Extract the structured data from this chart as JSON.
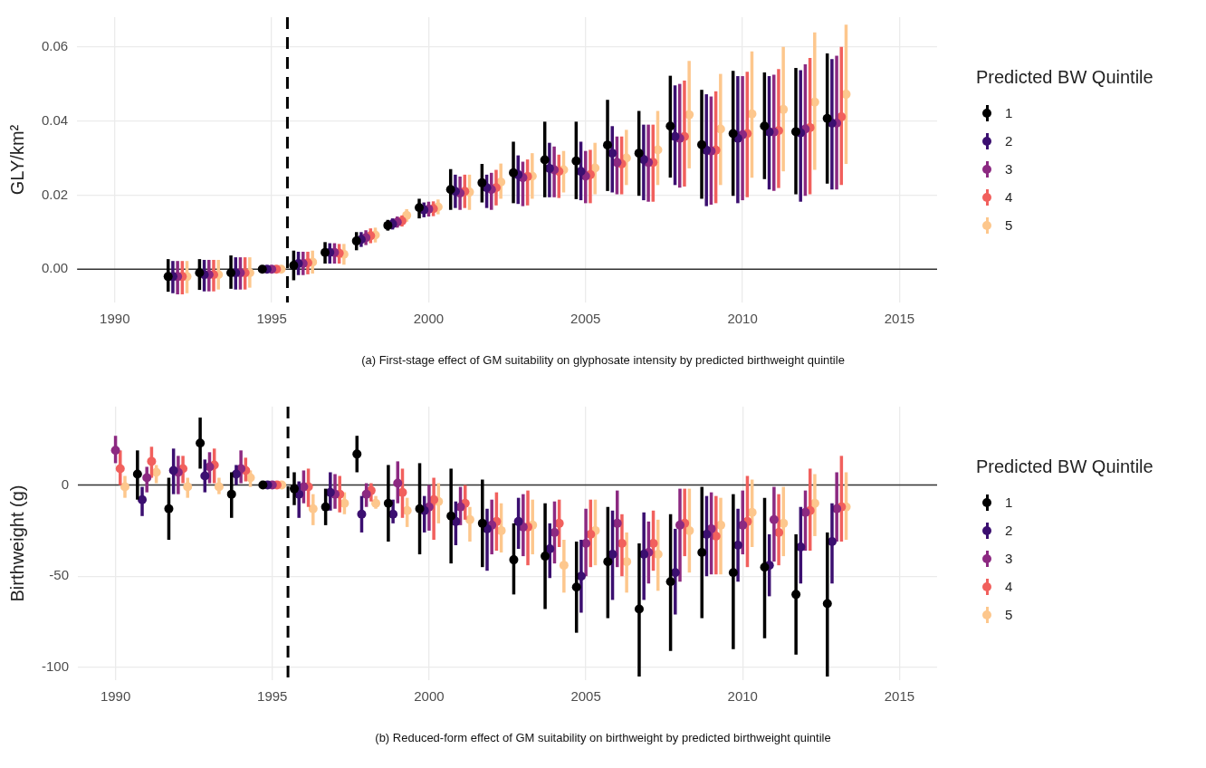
{
  "chart_data": [
    {
      "type": "scatter",
      "title": "(a) First-stage effect of GM suitability on glyphosate intensity by predicted birthweight quintile",
      "ylabel": "GLY/km²",
      "legend_title": "Predicted BW Quintile",
      "legend": "right",
      "grid": true,
      "marker": "circle",
      "xlim": [
        1988.8,
        2016.2
      ],
      "xticks": [
        1990,
        1995,
        2000,
        2005,
        2010,
        2015
      ],
      "ylim": [
        -0.009,
        0.068
      ],
      "yticks": [
        {
          "value": 0,
          "label": "0.00"
        },
        {
          "value": 0.02,
          "label": "0.02"
        },
        {
          "value": 0.04,
          "label": "0.04"
        },
        {
          "value": 0.06,
          "label": "0.06"
        }
      ],
      "ref_lines": [
        {
          "axis": "y",
          "value": 0,
          "color": "#333333",
          "line_style": "solid"
        },
        {
          "axis": "x",
          "value": 1995.5,
          "color": "#000000",
          "line_style": "dashed"
        }
      ],
      "series": [
        {
          "name": "1",
          "color": "#000000",
          "x": [
            1991.7,
            1992.7,
            1993.7,
            1994.7,
            1995.7,
            1996.7,
            1997.7,
            1998.7,
            1999.7,
            2000.7,
            2001.7,
            2002.7,
            2003.7,
            2004.7,
            2005.7,
            2006.7,
            2007.7,
            2008.7,
            2009.7,
            2010.7,
            2011.7,
            2012.7
          ],
          "values": [
            -0.002,
            -0.001,
            -0.001,
            0,
            0.001,
            0.0045,
            0.0076,
            0.0118,
            0.0166,
            0.0215,
            0.0233,
            0.026,
            0.0295,
            0.0292,
            0.0335,
            0.0313,
            0.0386,
            0.0336,
            0.0366,
            0.0386,
            0.0371,
            0.0407
          ],
          "errors": [
            [
              -0.0061,
              0.0027
            ],
            [
              -0.0056,
              0.0027
            ],
            [
              -0.0053,
              0.0037
            ],
            null,
            [
              -0.003,
              0.005
            ],
            [
              0.0015,
              0.0073
            ],
            [
              0.0051,
              0.01
            ],
            [
              0.0104,
              0.0133
            ],
            [
              0.0137,
              0.019
            ],
            [
              0.016,
              0.027
            ],
            [
              0.018,
              0.0284
            ],
            [
              0.0178,
              0.0344
            ],
            [
              0.0194,
              0.0398
            ],
            [
              0.0189,
              0.0398
            ],
            [
              0.0211,
              0.0457
            ],
            [
              0.0198,
              0.0427
            ],
            [
              0.0247,
              0.0522
            ],
            [
              0.019,
              0.0484
            ],
            [
              0.0198,
              0.0535
            ],
            [
              0.0243,
              0.0531
            ],
            [
              0.0202,
              0.0543
            ],
            [
              0.0231,
              0.0582
            ]
          ]
        },
        {
          "name": "2",
          "color": "#3b0f70",
          "x": [
            1991.85,
            1992.85,
            1993.85,
            1994.85,
            1995.85,
            1996.85,
            1997.85,
            1998.85,
            1999.85,
            2000.85,
            2001.85,
            2002.85,
            2003.85,
            2004.85,
            2005.85,
            2006.85,
            2007.85,
            2008.85,
            2009.85,
            2010.85,
            2011.85,
            2012.85
          ],
          "values": [
            -0.002,
            -0.0015,
            -0.001,
            0,
            0.0015,
            0.0045,
            0.008,
            0.0122,
            0.016,
            0.021,
            0.022,
            0.0255,
            0.0272,
            0.0264,
            0.0313,
            0.0296,
            0.0358,
            0.0321,
            0.0353,
            0.037,
            0.0368,
            0.0394
          ],
          "errors": [
            [
              -0.0065,
              0.0022
            ],
            [
              -0.006,
              0.0025
            ],
            [
              -0.0055,
              0.0032
            ],
            null,
            [
              -0.0016,
              0.0047
            ],
            [
              0.0015,
              0.007
            ],
            [
              0.006,
              0.01
            ],
            [
              0.0107,
              0.0137
            ],
            [
              0.014,
              0.018
            ],
            [
              0.0165,
              0.0255
            ],
            [
              0.0165,
              0.0255
            ],
            [
              0.0176,
              0.0307
            ],
            [
              0.0194,
              0.0341
            ],
            [
              0.0186,
              0.0344
            ],
            [
              0.0207,
              0.0386
            ],
            [
              0.0186,
              0.039
            ],
            [
              0.0227,
              0.0496
            ],
            [
              0.017,
              0.0472
            ],
            [
              0.0178,
              0.0521
            ],
            [
              0.0215,
              0.0521
            ],
            [
              0.0182,
              0.0537
            ],
            [
              0.0215,
              0.0567
            ]
          ]
        },
        {
          "name": "3",
          "color": "#8c2981",
          "x": [
            1992,
            1993,
            1994,
            1995,
            1996,
            1997,
            1998,
            1999,
            2000,
            2001,
            2002,
            2003,
            2004,
            2005,
            2006,
            2007,
            2008,
            2009,
            2010,
            2011,
            2012,
            2013
          ],
          "values": [
            -0.002,
            -0.0015,
            -0.001,
            0,
            0.0015,
            0.0045,
            0.0085,
            0.0127,
            0.0162,
            0.0205,
            0.0215,
            0.0247,
            0.0268,
            0.0251,
            0.0288,
            0.0288,
            0.0353,
            0.0319,
            0.0363,
            0.037,
            0.0378,
            0.0394
          ],
          "errors": [
            [
              -0.0068,
              0.0022
            ],
            [
              -0.006,
              0.0025
            ],
            [
              -0.0055,
              0.0032
            ],
            null,
            [
              -0.0016,
              0.0047
            ],
            [
              0.0015,
              0.007
            ],
            [
              0.0065,
              0.0105
            ],
            [
              0.0112,
              0.0142
            ],
            [
              0.0142,
              0.0182
            ],
            [
              0.016,
              0.025
            ],
            [
              0.016,
              0.026
            ],
            [
              0.017,
              0.029
            ],
            [
              0.0194,
              0.0331
            ],
            [
              0.0178,
              0.0319
            ],
            [
              0.0202,
              0.0358
            ],
            [
              0.0182,
              0.039
            ],
            [
              0.022,
              0.05
            ],
            [
              0.0174,
              0.0466
            ],
            [
              0.0186,
              0.0521
            ],
            [
              0.0211,
              0.0525
            ],
            [
              0.0198,
              0.0553
            ],
            [
              0.0215,
              0.0576
            ]
          ]
        },
        {
          "name": "4",
          "color": "#f1605d",
          "x": [
            1992.15,
            1993.15,
            1994.15,
            1995.15,
            1996.15,
            1997.15,
            1998.15,
            1999.15,
            2000.15,
            2001.15,
            2002.15,
            2003.15,
            2004.15,
            2005.15,
            2006.15,
            2007.15,
            2008.15,
            2009.15,
            2010.15,
            2011.15,
            2012.15,
            2013.15
          ],
          "values": [
            -0.002,
            -0.0015,
            -0.001,
            0,
            0.0017,
            0.0043,
            0.009,
            0.013,
            0.0163,
            0.021,
            0.022,
            0.025,
            0.0264,
            0.0255,
            0.0284,
            0.0288,
            0.0358,
            0.0321,
            0.0366,
            0.0374,
            0.0382,
            0.0411
          ],
          "errors": [
            [
              -0.0068,
              0.0022
            ],
            [
              -0.006,
              0.0025
            ],
            [
              -0.0055,
              0.0032
            ],
            null,
            [
              -0.0014,
              0.0047
            ],
            [
              0.0015,
              0.0068
            ],
            [
              0.007,
              0.011
            ],
            [
              0.0115,
              0.0145
            ],
            [
              0.0143,
              0.0183
            ],
            [
              0.0165,
              0.0255
            ],
            [
              0.0172,
              0.0268
            ],
            [
              0.0172,
              0.0296
            ],
            [
              0.0192,
              0.0309
            ],
            [
              0.0178,
              0.0322
            ],
            [
              0.0202,
              0.0358
            ],
            [
              0.0182,
              0.039
            ],
            [
              0.0223,
              0.0509
            ],
            [
              0.0178,
              0.048
            ],
            [
              0.0194,
              0.0533
            ],
            [
              0.0219,
              0.054
            ],
            [
              0.0202,
              0.057
            ],
            [
              0.0227,
              0.06
            ]
          ]
        },
        {
          "name": "5",
          "color": "#fdc78d",
          "x": [
            1992.3,
            1993.3,
            1994.3,
            1995.3,
            1996.3,
            1997.3,
            1998.3,
            1999.3,
            2000.3,
            2001.3,
            2002.3,
            2003.3,
            2004.3,
            2005.3,
            2006.3,
            2007.3,
            2008.3,
            2009.3,
            2010.3,
            2011.3,
            2012.3,
            2013.3
          ],
          "values": [
            -0.002,
            -0.0015,
            -0.001,
            0,
            0.0019,
            0.004,
            0.0092,
            0.0145,
            0.0168,
            0.0208,
            0.0235,
            0.0251,
            0.0268,
            0.0273,
            0.03,
            0.0322,
            0.0417,
            0.0378,
            0.0419,
            0.0431,
            0.0451,
            0.0472
          ],
          "errors": [
            [
              -0.0065,
              0.0022
            ],
            [
              -0.0055,
              0.0025
            ],
            [
              -0.005,
              0.0032
            ],
            null,
            [
              -0.0012,
              0.005
            ],
            [
              0.0012,
              0.0068
            ],
            [
              0.0072,
              0.0112
            ],
            [
              0.0128,
              0.0162
            ],
            [
              0.0148,
              0.0188
            ],
            [
              0.016,
              0.0255
            ],
            [
              0.019,
              0.0285
            ],
            [
              0.019,
              0.0313
            ],
            [
              0.0207,
              0.0319
            ],
            [
              0.0202,
              0.0341
            ],
            [
              0.0227,
              0.0376
            ],
            [
              0.0227,
              0.0427
            ],
            [
              0.0272,
              0.0562
            ],
            [
              0.0227,
              0.0527
            ],
            [
              0.0247,
              0.0588
            ],
            [
              0.0264,
              0.06
            ],
            [
              0.0268,
              0.0639
            ],
            [
              0.0284,
              0.066
            ]
          ]
        }
      ]
    },
    {
      "type": "scatter",
      "title": "(b) Reduced-form effect of GM suitability on birthweight by predicted birthweight quintile",
      "ylabel": "Birthweight (g)",
      "legend_title": "Predicted BW Quintile",
      "legend": "right",
      "grid": true,
      "marker": "circle",
      "xlim": [
        1988.8,
        2016.2
      ],
      "xticks": [
        1990,
        1995,
        2000,
        2005,
        2010,
        2015
      ],
      "ylim": [
        -107,
        43
      ],
      "yticks": [
        -100,
        -50,
        0
      ],
      "ref_lines": [
        {
          "axis": "y",
          "value": 0,
          "color": "#333333",
          "line_style": "solid"
        },
        {
          "axis": "x",
          "value": 1995.5,
          "color": "#000000",
          "line_style": "dashed"
        }
      ],
      "series": [
        {
          "name": "1",
          "color": "#000000",
          "x": [
            null,
            1990.7,
            1991.7,
            1992.7,
            1993.7,
            1994.7,
            1995.7,
            1996.7,
            1997.7,
            1998.7,
            1999.7,
            2000.7,
            2001.7,
            2002.7,
            2003.7,
            2004.7,
            2005.7,
            2006.7,
            2007.7,
            2008.7,
            2009.7,
            2010.7,
            2011.7,
            2012.7
          ],
          "values": [
            null,
            6,
            -13,
            23,
            -5,
            0,
            -2,
            -12,
            17,
            -10,
            -13,
            -17,
            -21,
            -41,
            -39,
            -56,
            -42,
            -68,
            -53,
            -37,
            -48,
            -45,
            -60,
            -65
          ],
          "errors": [
            null,
            [
              -8,
              19
            ],
            [
              -30,
              4
            ],
            [
              9,
              37
            ],
            [
              -18,
              7
            ],
            null,
            [
              -11,
              7
            ],
            [
              -22,
              -2
            ],
            [
              7,
              27
            ],
            [
              -31,
              11
            ],
            [
              -38,
              12
            ],
            [
              -43,
              9
            ],
            [
              -45,
              3
            ],
            [
              -60,
              -21
            ],
            [
              -68,
              -10
            ],
            [
              -81,
              -31
            ],
            [
              -73,
              -12
            ],
            [
              -105,
              -32
            ],
            [
              -91,
              -16
            ],
            [
              -73,
              -1
            ],
            [
              -90,
              -5
            ],
            [
              -84,
              -7
            ],
            [
              -93,
              -27
            ],
            [
              -105,
              -26
            ]
          ]
        },
        {
          "name": "2",
          "color": "#3b0f70",
          "x": [
            null,
            1990.85,
            1991.85,
            1992.85,
            1993.85,
            1994.85,
            1995.85,
            1996.85,
            1997.85,
            1998.85,
            1999.85,
            2000.85,
            2001.85,
            2002.85,
            2003.85,
            2004.85,
            2005.85,
            2006.85,
            2007.85,
            2008.85,
            2009.85,
            2010.85,
            2011.85,
            2012.85
          ],
          "values": [
            null,
            -8,
            8,
            5,
            6,
            0,
            -5,
            -4,
            -16,
            -16,
            -14,
            -20,
            -24,
            -20,
            -35,
            -50,
            -38,
            -38,
            -48,
            -27,
            -33,
            -44,
            -34,
            -31
          ],
          "errors": [
            null,
            [
              -17,
              -1
            ],
            [
              -5,
              20
            ],
            [
              -4,
              14
            ],
            [
              0,
              11
            ],
            null,
            [
              -18,
              2
            ],
            [
              -14,
              7
            ],
            [
              -26,
              -6
            ],
            [
              -21,
              -8
            ],
            [
              -26,
              -6
            ],
            [
              -33,
              -9
            ],
            [
              -47,
              -13
            ],
            [
              -35,
              -7
            ],
            [
              -51,
              -21
            ],
            [
              -70,
              -30
            ],
            [
              -63,
              -14
            ],
            [
              -63,
              -15
            ],
            [
              -71,
              -24
            ],
            [
              -50,
              -6
            ],
            [
              -53,
              -13
            ],
            [
              -61,
              -27
            ],
            [
              -54,
              -12
            ],
            [
              -54,
              -10
            ]
          ]
        },
        {
          "name": "3",
          "color": "#8c2981",
          "x": [
            1990,
            1991,
            1992,
            1993,
            1994,
            1995,
            1996,
            1997,
            1998,
            1999,
            2000,
            2001,
            2002,
            2003,
            2004,
            2005,
            2006,
            2007,
            2008,
            2009,
            2010,
            2011,
            2012,
            2013
          ],
          "values": [
            19,
            4,
            7,
            10,
            9,
            0,
            -1,
            -5,
            -5,
            1,
            -12,
            -12,
            -22,
            -23,
            -26,
            -32,
            -21,
            -37,
            -22,
            -24,
            -22,
            -19,
            -15,
            -13
          ],
          "errors": [
            [
              12,
              27
            ],
            [
              -4,
              10
            ],
            [
              -5,
              16
            ],
            [
              1,
              18
            ],
            [
              1,
              19
            ],
            null,
            [
              -10,
              8
            ],
            [
              -13,
              6
            ],
            [
              -12,
              1
            ],
            [
              -10,
              13
            ],
            [
              -25,
              0
            ],
            [
              -22,
              -1
            ],
            [
              -38,
              -8
            ],
            [
              -39,
              -5
            ],
            [
              -43,
              -9
            ],
            [
              -50,
              -13
            ],
            [
              -45,
              -3
            ],
            [
              -54,
              -20
            ],
            [
              -53,
              -2
            ],
            [
              -49,
              -4
            ],
            [
              -38,
              -3
            ],
            [
              -42,
              -1
            ],
            [
              -36,
              -3
            ],
            [
              -31,
              7
            ]
          ]
        },
        {
          "name": "4",
          "color": "#f1605d",
          "x": [
            1990.15,
            1991.15,
            1992.15,
            1993.15,
            1994.15,
            1995.15,
            1996.15,
            1997.15,
            1998.15,
            1999.15,
            2000.15,
            2001.15,
            2002.15,
            2003.15,
            2004.15,
            2005.15,
            2006.15,
            2007.15,
            2008.15,
            2009.15,
            2010.15,
            2011.15,
            2012.15,
            2013.15
          ],
          "values": [
            9,
            13,
            9,
            11,
            8,
            0,
            -1,
            -5,
            -3,
            -4,
            -8,
            -10,
            -20,
            -23,
            -21,
            -27,
            -32,
            -32,
            -21,
            -28,
            -20,
            -26,
            -14,
            -12
          ],
          "errors": [
            [
              0,
              19
            ],
            [
              4,
              21
            ],
            [
              1,
              16
            ],
            [
              1,
              20
            ],
            [
              2,
              15
            ],
            null,
            [
              -12,
              9
            ],
            [
              -15,
              5
            ],
            [
              -9,
              1
            ],
            [
              -18,
              9
            ],
            [
              -30,
              4
            ],
            [
              -19,
              0
            ],
            [
              -36,
              -4
            ],
            [
              -44,
              -3
            ],
            [
              -34,
              -8
            ],
            [
              -45,
              -8
            ],
            [
              -50,
              -16
            ],
            [
              -47,
              -14
            ],
            [
              -39,
              -2
            ],
            [
              -49,
              -6
            ],
            [
              -45,
              5
            ],
            [
              -44,
              -5
            ],
            [
              -36,
              9
            ],
            [
              -31,
              16
            ]
          ]
        },
        {
          "name": "5",
          "color": "#fdc78d",
          "x": [
            1990.3,
            1991.3,
            1992.3,
            1993.3,
            1994.3,
            1995.3,
            1996.3,
            1997.3,
            1998.3,
            1999.3,
            2000.3,
            2001.3,
            2002.3,
            2003.3,
            2004.3,
            2005.3,
            2006.3,
            2007.3,
            2008.3,
            2009.3,
            2010.3,
            2011.3,
            2012.3,
            2013.3
          ],
          "values": [
            -1,
            7,
            -1,
            -1,
            4,
            0,
            -13,
            -10,
            -10,
            -14,
            -9,
            -19,
            -25,
            -22,
            -44,
            -25,
            -42,
            -38,
            -25,
            -22,
            -15,
            -21,
            -10,
            -12
          ],
          "errors": [
            [
              -7,
              5
            ],
            [
              1,
              11
            ],
            [
              -7,
              4
            ],
            [
              -5,
              4
            ],
            [
              -1,
              8
            ],
            null,
            [
              -22,
              -5
            ],
            [
              -16,
              -4
            ],
            [
              -13,
              -6
            ],
            [
              -23,
              -7
            ],
            [
              -21,
              1
            ],
            [
              -31,
              -12
            ],
            [
              -37,
              -10
            ],
            [
              -38,
              -8
            ],
            [
              -59,
              -30
            ],
            [
              -44,
              -8
            ],
            [
              -59,
              -26
            ],
            [
              -58,
              -19
            ],
            [
              -48,
              -2
            ],
            [
              -49,
              -7
            ],
            [
              -34,
              3
            ],
            [
              -39,
              -1
            ],
            [
              -28,
              6
            ],
            [
              -30,
              7
            ]
          ]
        }
      ]
    }
  ]
}
